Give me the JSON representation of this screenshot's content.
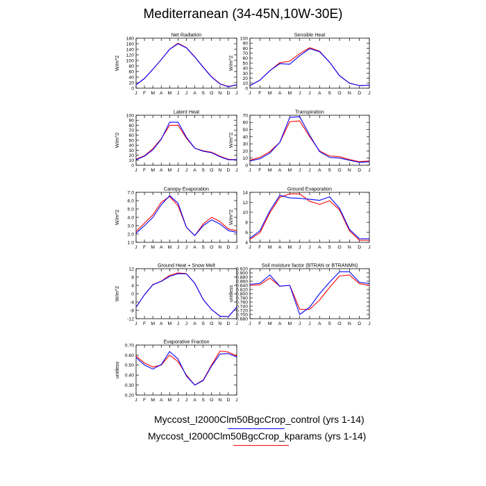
{
  "title": "Mediterranean (34-45N,10W-30E)",
  "colors": {
    "control": "#0000ff",
    "kparams": "#ff0000",
    "axis": "#000000"
  },
  "legend": [
    {
      "label": "Myccost_I2000Clm50BgcCrop_control (yrs 1-14)",
      "color": "#0000ff"
    },
    {
      "label": "Myccost_I2000Clm50BgcCrop_kparams (yrs 1-14)",
      "color": "#ff0000"
    }
  ],
  "chart_data": [
    {
      "type": "line",
      "title": "Net Radiation",
      "ylabel": "W/m^2",
      "categories": [
        "J",
        "F",
        "M",
        "A",
        "M",
        "J",
        "J",
        "A",
        "S",
        "O",
        "N",
        "D",
        "J"
      ],
      "ylim": [
        0,
        180
      ],
      "yticks": [
        0,
        20,
        40,
        60,
        80,
        100,
        120,
        140,
        160,
        180
      ],
      "ytick_decimals": 0,
      "series": [
        {
          "name": "Myccost_I2000Clm50BgcCrop_control (yrs 1-14)",
          "values": [
            12,
            35,
            68,
            103,
            140,
            160,
            145,
            112,
            75,
            40,
            15,
            5,
            12
          ]
        },
        {
          "name": "Myccost_I2000Clm50BgcCrop_kparams (yrs 1-14)",
          "values": [
            12,
            35,
            68,
            103,
            140,
            162,
            146,
            113,
            76,
            41,
            16,
            6,
            12
          ]
        }
      ]
    },
    {
      "type": "line",
      "title": "Sensible Heat",
      "ylabel": "W/m^2",
      "categories": [
        "J",
        "F",
        "M",
        "A",
        "M",
        "J",
        "J",
        "A",
        "S",
        "O",
        "N",
        "D",
        "J"
      ],
      "ylim": [
        0,
        100
      ],
      "yticks": [
        0,
        10,
        20,
        30,
        40,
        50,
        60,
        70,
        80,
        90,
        100
      ],
      "ytick_decimals": 0,
      "series": [
        {
          "name": "Myccost_I2000Clm50BgcCrop_control (yrs 1-14)",
          "values": [
            5,
            16,
            35,
            49,
            48,
            65,
            79,
            73,
            52,
            25,
            10,
            5,
            6
          ]
        },
        {
          "name": "Myccost_I2000Clm50BgcCrop_kparams (yrs 1-14)",
          "values": [
            5,
            16,
            35,
            51,
            54,
            69,
            81,
            74,
            52,
            25,
            10,
            5,
            6
          ]
        }
      ]
    },
    {
      "type": "line",
      "title": "Latent Heat",
      "ylabel": "W/m^2",
      "categories": [
        "J",
        "F",
        "M",
        "A",
        "M",
        "J",
        "J",
        "A",
        "S",
        "O",
        "N",
        "D",
        "J"
      ],
      "ylim": [
        0,
        100
      ],
      "yticks": [
        0,
        10,
        20,
        30,
        40,
        50,
        60,
        70,
        80,
        90,
        100
      ],
      "ytick_decimals": 0,
      "series": [
        {
          "name": "Myccost_I2000Clm50BgcCrop_control (yrs 1-14)",
          "values": [
            11,
            18,
            31,
            52,
            86,
            86,
            56,
            34,
            28,
            25,
            17,
            11,
            11
          ]
        },
        {
          "name": "Myccost_I2000Clm50BgcCrop_kparams (yrs 1-14)",
          "values": [
            12,
            19,
            33,
            53,
            80,
            80,
            54,
            34,
            29,
            26,
            18,
            12,
            11
          ]
        }
      ]
    },
    {
      "type": "line",
      "title": "Transpiration",
      "ylabel": "W/m^2",
      "categories": [
        "J",
        "F",
        "M",
        "A",
        "M",
        "J",
        "J",
        "A",
        "S",
        "O",
        "N",
        "D",
        "J"
      ],
      "ylim": [
        0,
        70
      ],
      "yticks": [
        0,
        10,
        20,
        30,
        40,
        50,
        60,
        70
      ],
      "ytick_decimals": 0,
      "series": [
        {
          "name": "Myccost_I2000Clm50BgcCrop_control (yrs 1-14)",
          "values": [
            6,
            9,
            17,
            32,
            67,
            68,
            42,
            19,
            11,
            10,
            7,
            4,
            5
          ]
        },
        {
          "name": "Myccost_I2000Clm50BgcCrop_kparams (yrs 1-14)",
          "values": [
            7,
            11,
            19,
            32,
            61,
            62,
            40,
            20,
            13,
            12,
            8,
            5,
            6
          ]
        }
      ]
    },
    {
      "type": "line",
      "title": "Canopy Evaporation",
      "ylabel": "W/m^2",
      "categories": [
        "J",
        "F",
        "M",
        "A",
        "M",
        "J",
        "J",
        "A",
        "S",
        "O",
        "N",
        "D",
        "J"
      ],
      "ylim": [
        1.0,
        7.0
      ],
      "yticks": [
        1.0,
        2.0,
        3.0,
        4.0,
        5.0,
        6.0,
        7.0
      ],
      "ytick_decimals": 1,
      "series": [
        {
          "name": "Myccost_I2000Clm50BgcCrop_control (yrs 1-14)",
          "values": [
            2.1,
            3.0,
            4.0,
            5.5,
            6.6,
            5.7,
            2.8,
            1.8,
            3.0,
            3.7,
            3.2,
            2.4,
            2.2
          ]
        },
        {
          "name": "Myccost_I2000Clm50BgcCrop_kparams (yrs 1-14)",
          "values": [
            2.3,
            3.3,
            4.3,
            5.8,
            6.5,
            5.4,
            2.8,
            1.8,
            3.2,
            4.0,
            3.5,
            2.6,
            2.4
          ]
        }
      ]
    },
    {
      "type": "line",
      "title": "Ground Evaporation",
      "ylabel": "W/m^2",
      "categories": [
        "J",
        "F",
        "M",
        "A",
        "M",
        "J",
        "J",
        "A",
        "S",
        "O",
        "N",
        "D",
        "J"
      ],
      "ylim": [
        4,
        14
      ],
      "yticks": [
        4,
        6,
        8,
        10,
        12,
        14
      ],
      "ytick_decimals": 0,
      "series": [
        {
          "name": "Myccost_I2000Clm50BgcCrop_control (yrs 1-14)",
          "values": [
            4.8,
            6.3,
            10.3,
            13.4,
            12.9,
            12.8,
            12.6,
            12.4,
            13.1,
            10.8,
            6.6,
            4.7,
            4.7
          ]
        },
        {
          "name": "Myccost_I2000Clm50BgcCrop_kparams (yrs 1-14)",
          "values": [
            4.6,
            5.9,
            9.9,
            13.0,
            13.7,
            13.7,
            12.2,
            11.6,
            12.3,
            10.5,
            6.3,
            4.4,
            4.4
          ]
        }
      ]
    },
    {
      "type": "line",
      "title": "Ground Heat + Snow Melt",
      "ylabel": "W/m^2",
      "categories": [
        "J",
        "F",
        "M",
        "A",
        "M",
        "J",
        "J",
        "A",
        "S",
        "O",
        "N",
        "D",
        "J"
      ],
      "ylim": [
        -12,
        12
      ],
      "yticks": [
        -12,
        -8,
        -4,
        0,
        4,
        8,
        12
      ],
      "ytick_decimals": 0,
      "series": [
        {
          "name": "Myccost_I2000Clm50BgcCrop_control (yrs 1-14)",
          "values": [
            -6.5,
            -0.5,
            4.3,
            5.9,
            8.3,
            9.6,
            9.5,
            5.0,
            -2.8,
            -7.6,
            -10.8,
            -11.0,
            -6.5
          ]
        },
        {
          "name": "Myccost_I2000Clm50BgcCrop_kparams (yrs 1-14)",
          "values": [
            -6.5,
            -0.5,
            4.4,
            6.0,
            8.8,
            10.0,
            9.6,
            5.0,
            -2.8,
            -7.6,
            -10.8,
            -11.0,
            -6.5
          ]
        }
      ]
    },
    {
      "type": "line",
      "title": "Soil moisture factor (BTRAN or BTRANMN)",
      "ylabel": "unitless",
      "categories": [
        "J",
        "F",
        "M",
        "A",
        "M",
        "J",
        "J",
        "A",
        "S",
        "O",
        "N",
        "D",
        "J"
      ],
      "ylim": [
        0.68,
        0.92
      ],
      "yticks": [
        0.68,
        0.7,
        0.72,
        0.74,
        0.76,
        0.78,
        0.8,
        0.82,
        0.84,
        0.86,
        0.88,
        0.9,
        0.92
      ],
      "ytick_decimals": 3,
      "series": [
        {
          "name": "Myccost_I2000Clm50BgcCrop_control (yrs 1-14)",
          "values": [
            0.845,
            0.85,
            0.89,
            0.836,
            0.84,
            0.7,
            0.735,
            0.8,
            0.855,
            0.905,
            0.905,
            0.855,
            0.848
          ]
        },
        {
          "name": "Myccost_I2000Clm50BgcCrop_kparams (yrs 1-14)",
          "values": [
            0.84,
            0.843,
            0.875,
            0.836,
            0.84,
            0.725,
            0.725,
            0.77,
            0.83,
            0.885,
            0.89,
            0.848,
            0.84
          ]
        }
      ]
    },
    {
      "type": "line",
      "title": "Evaporative Fraction",
      "ylabel": "unitless",
      "categories": [
        "J",
        "F",
        "M",
        "A",
        "M",
        "J",
        "J",
        "A",
        "S",
        "O",
        "N",
        "D",
        "J"
      ],
      "ylim": [
        0.2,
        0.7
      ],
      "yticks": [
        0.2,
        0.3,
        0.4,
        0.5,
        0.6,
        0.7
      ],
      "ytick_decimals": 2,
      "series": [
        {
          "name": "Myccost_I2000Clm50BgcCrop_control (yrs 1-14)",
          "values": [
            0.575,
            0.5,
            0.46,
            0.505,
            0.635,
            0.56,
            0.39,
            0.3,
            0.345,
            0.49,
            0.61,
            0.615,
            0.58
          ]
        },
        {
          "name": "Myccost_I2000Clm50BgcCrop_kparams (yrs 1-14)",
          "values": [
            0.59,
            0.52,
            0.48,
            0.5,
            0.6,
            0.535,
            0.4,
            0.3,
            0.35,
            0.5,
            0.64,
            0.63,
            0.59
          ]
        }
      ]
    }
  ]
}
